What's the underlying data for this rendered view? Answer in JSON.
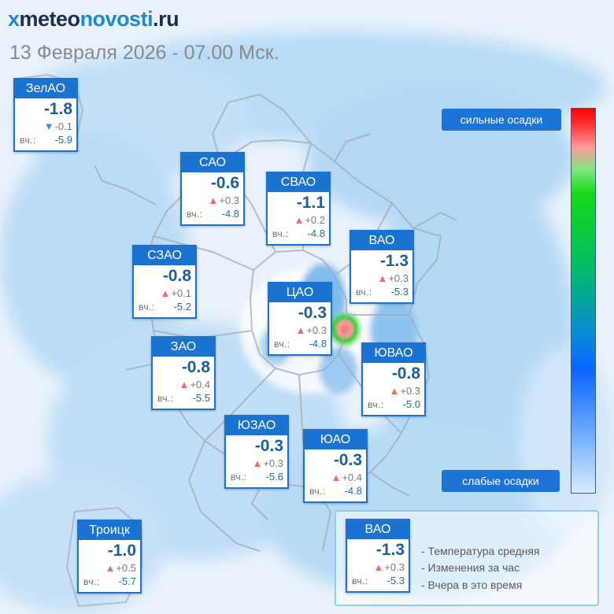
{
  "brand": {
    "mark": "x",
    "part1": "meteo",
    "part2": "novosti",
    "part3": ".ru"
  },
  "title": "13 Февраля 2026 - 07.00 Мск.",
  "colors": {
    "card_header": "#1a73d1",
    "temp_text": "#1b5f9e",
    "rise_marker": "#f26b6b",
    "fall_marker": "#3a8fe0"
  },
  "yesterday_label": "вч.:",
  "districts": [
    {
      "id": "zelao",
      "name": "ЗелАО",
      "temp": "-1.8",
      "trend": "down",
      "change": "-0.1",
      "yesterday": "-5.9"
    },
    {
      "id": "sao",
      "name": "САО",
      "temp": "-0.6",
      "trend": "up",
      "change": "+0.3",
      "yesterday": "-4.8"
    },
    {
      "id": "svao",
      "name": "СВАО",
      "temp": "-1.1",
      "trend": "up",
      "change": "+0.2",
      "yesterday": "-4.8"
    },
    {
      "id": "vao",
      "name": "ВАО",
      "temp": "-1.3",
      "trend": "up",
      "change": "+0.3",
      "yesterday": "-5.3"
    },
    {
      "id": "szao",
      "name": "СЗАО",
      "temp": "-0.8",
      "trend": "up",
      "change": "+0.1",
      "yesterday": "-5.2"
    },
    {
      "id": "tsao",
      "name": "ЦАО",
      "temp": "-0.3",
      "trend": "up",
      "change": "+0.3",
      "yesterday": "-4.8"
    },
    {
      "id": "zao",
      "name": "ЗАО",
      "temp": "-0.8",
      "trend": "up",
      "change": "+0.4",
      "yesterday": "-5.5"
    },
    {
      "id": "yuvao",
      "name": "ЮВАО",
      "temp": "-0.8",
      "trend": "up",
      "change": "+0.3",
      "yesterday": "-5.0"
    },
    {
      "id": "yuzao",
      "name": "ЮЗАО",
      "temp": "-0.3",
      "trend": "up",
      "change": "+0.3",
      "yesterday": "-5.6"
    },
    {
      "id": "yuao",
      "name": "ЮАО",
      "temp": "-0.3",
      "trend": "up",
      "change": "+0.4",
      "yesterday": "-4.8"
    },
    {
      "id": "troitsk",
      "name": "Троицк",
      "temp": "-1.0",
      "trend": "up",
      "change": "+0.5",
      "yesterday": "-5.7"
    }
  ],
  "precip_scale": {
    "high_label": "сильные осадки",
    "low_label": "слабые осадки"
  },
  "legend": {
    "sample": {
      "name": "ВАО",
      "temp": "-1.3",
      "trend": "up",
      "change": "+0.3",
      "yesterday": "-5.3"
    },
    "items": [
      "- Температура средняя",
      "- Изменения за час",
      "- Вчера в это время"
    ]
  }
}
